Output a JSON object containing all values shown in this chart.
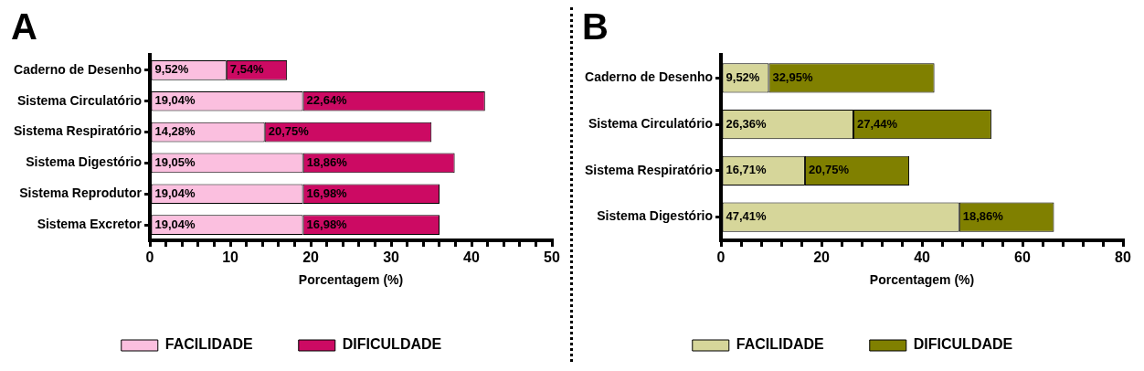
{
  "chart_data": [
    {
      "type": "bar",
      "title": "A",
      "orientation": "horizontal",
      "stacked": true,
      "xlabel": "Porcentagem (%)",
      "legend": "bottom",
      "grid": false,
      "categories": [
        "Caderno de Desenho",
        "Sistema Circulatório",
        "Sistema Respiratório",
        "Sistema Digestório",
        "Sistema Reprodutor",
        "Sistema Excretor"
      ],
      "series": [
        {
          "name": "FACILIDADE",
          "color": "#fbbfdf",
          "values": [
            9.52,
            19.04,
            14.28,
            19.05,
            19.04,
            19.04
          ],
          "value_labels": [
            "9,52%",
            "19,04%",
            "14,28%",
            "19,05%",
            "19,04%",
            "19,04%"
          ]
        },
        {
          "name": "DIFICULDADE",
          "color": "#cc0a63",
          "values": [
            7.54,
            22.64,
            20.75,
            18.86,
            16.98,
            16.98
          ],
          "value_labels": [
            "7,54%",
            "22,64%",
            "20,75%",
            "18,86%",
            "16,98%",
            "16,98%"
          ]
        }
      ],
      "xlim": [
        0,
        50
      ],
      "xticks": [
        0,
        {
          "value": 2,
          "label": null
        },
        {
          "value": 4,
          "label": null
        },
        {
          "value": 6,
          "label": null
        },
        {
          "value": 8,
          "label": null
        },
        10,
        {
          "value": 12,
          "label": null
        },
        {
          "value": 14,
          "label": null
        },
        {
          "value": 16,
          "label": null
        },
        {
          "value": 18,
          "label": null
        },
        20,
        {
          "value": 22,
          "label": null
        },
        {
          "value": 24,
          "label": null
        },
        {
          "value": 26,
          "label": null
        },
        {
          "value": 28,
          "label": null
        },
        30,
        {
          "value": 32,
          "label": null
        },
        {
          "value": 34,
          "label": null
        },
        {
          "value": 36,
          "label": null
        },
        {
          "value": 38,
          "label": null
        },
        40,
        {
          "value": 42,
          "label": null
        },
        {
          "value": 44,
          "label": null
        },
        {
          "value": 46,
          "label": null
        },
        {
          "value": 48,
          "label": null
        },
        50
      ]
    },
    {
      "type": "bar",
      "title": "B",
      "orientation": "horizontal",
      "stacked": true,
      "xlabel": "Porcentagem (%)",
      "legend": "bottom",
      "grid": false,
      "categories": [
        "Caderno de Desenho",
        "Sistema Circulatório",
        "Sistema Respiratório",
        "Sistema Digestório"
      ],
      "series": [
        {
          "name": "FACILIDADE",
          "color": "#d6d69a",
          "values": [
            9.52,
            26.36,
            16.71,
            47.41
          ],
          "value_labels": [
            "9,52%",
            "26,36%",
            "16,71%",
            "47,41%"
          ]
        },
        {
          "name": "DIFICULDADE",
          "color": "#808000",
          "values": [
            32.95,
            27.44,
            20.75,
            18.86
          ],
          "value_labels": [
            "32,95%",
            "27,44%",
            "20,75%",
            "18,86%"
          ]
        }
      ],
      "xlim": [
        0,
        80
      ],
      "xticks": [
        0,
        {
          "value": 4,
          "label": null
        },
        {
          "value": 8,
          "label": null
        },
        {
          "value": 12,
          "label": null
        },
        {
          "value": 16,
          "label": null
        },
        20,
        {
          "value": 24,
          "label": null
        },
        {
          "value": 28,
          "label": null
        },
        {
          "value": 32,
          "label": null
        },
        {
          "value": 36,
          "label": null
        },
        40,
        {
          "value": 44,
          "label": null
        },
        {
          "value": 48,
          "label": null
        },
        {
          "value": 52,
          "label": null
        },
        {
          "value": 56,
          "label": null
        },
        60,
        {
          "value": 64,
          "label": null
        },
        {
          "value": 68,
          "label": null
        },
        {
          "value": 72,
          "label": null
        },
        {
          "value": 76,
          "label": null
        },
        80
      ]
    }
  ]
}
